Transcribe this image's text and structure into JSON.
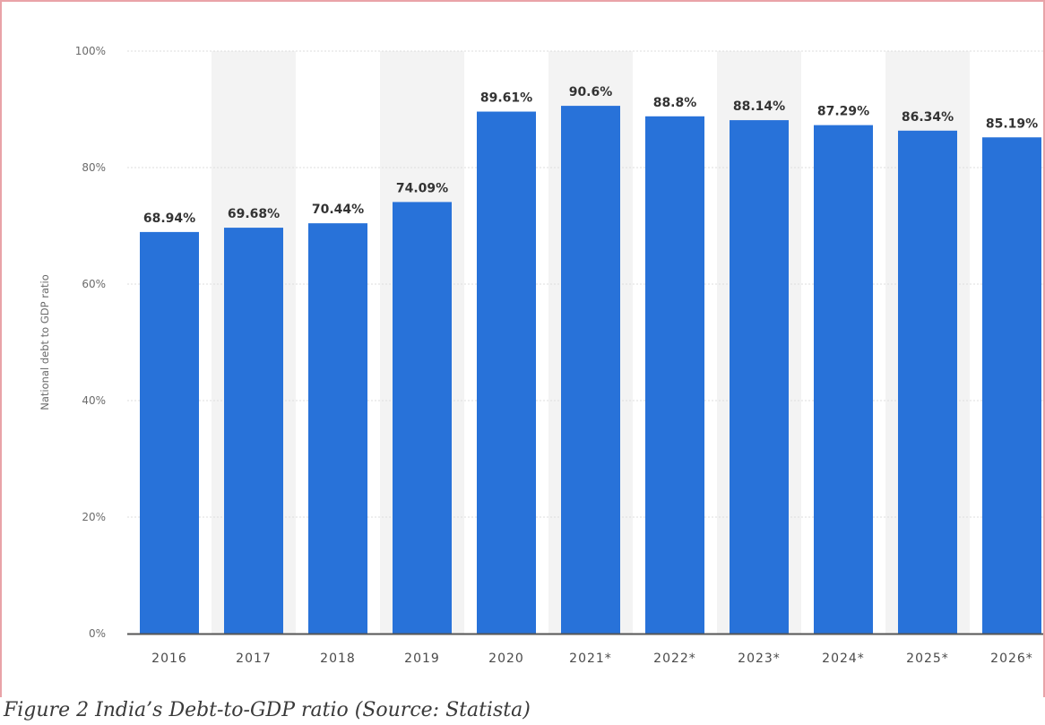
{
  "figure": {
    "caption": "Figure 2 India’s Debt-to-GDP ratio (Source: Statista)"
  },
  "chart_data": {
    "type": "bar",
    "title": "",
    "xlabel": "",
    "ylabel": "National debt to GDP ratio",
    "categories": [
      "2016",
      "2017",
      "2018",
      "2019",
      "2020",
      "2021*",
      "2022*",
      "2023*",
      "2024*",
      "2025*",
      "2026*"
    ],
    "series": [
      {
        "values": [
          68.94,
          69.68,
          70.44,
          74.09,
          89.61,
          90.6,
          88.8,
          88.14,
          87.29,
          86.34,
          85.19
        ],
        "data_labels": [
          "68.94%",
          "69.68%",
          "70.44%",
          "74.09%",
          "89.61%",
          "90.6%",
          "88.8%",
          "88.14%",
          "87.29%",
          "86.34%",
          "85.19%"
        ],
        "color": "#2872d9"
      }
    ],
    "ylim": [
      0,
      100
    ],
    "yticks": [
      0,
      20,
      40,
      60,
      80,
      100
    ],
    "ytick_labels": [
      "0%",
      "20%",
      "40%",
      "60%",
      "80%",
      "100%"
    ],
    "grid": true,
    "legend": "none",
    "colors": {
      "bar": "#2872d9",
      "band": "#f3f3f3",
      "grid": "#dcdcdc",
      "axis": "#555555"
    }
  }
}
